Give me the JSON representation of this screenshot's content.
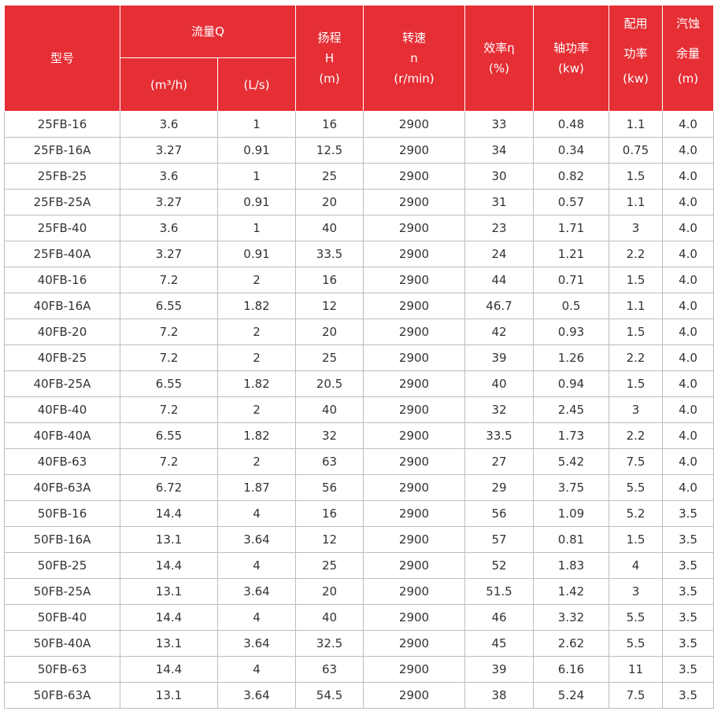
{
  "headers": {
    "model": "型号",
    "flow": "流量Q",
    "flow_m3h": "(m³/h)",
    "flow_ls": "(L/s)",
    "head": [
      "扬程",
      "H",
      "(m)"
    ],
    "speed": [
      "转速",
      "n",
      "(r/min)"
    ],
    "efficiency": [
      "效率η",
      "(%)"
    ],
    "shaft_power": [
      "轴功率",
      "(kw)"
    ],
    "motor_power": [
      "配用",
      "功率",
      "(kw)"
    ],
    "npsh": [
      "汽蚀",
      "余量",
      "(m)"
    ]
  },
  "rows": [
    [
      "25FB-16",
      "3.6",
      "1",
      "16",
      "2900",
      "33",
      "0.48",
      "1.1",
      "4.0"
    ],
    [
      "25FB-16A",
      "3.27",
      "0.91",
      "12.5",
      "2900",
      "34",
      "0.34",
      "0.75",
      "4.0"
    ],
    [
      "25FB-25",
      "3.6",
      "1",
      "25",
      "2900",
      "30",
      "0.82",
      "1.5",
      "4.0"
    ],
    [
      "25FB-25A",
      "3.27",
      "0.91",
      "20",
      "2900",
      "31",
      "0.57",
      "1.1",
      "4.0"
    ],
    [
      "25FB-40",
      "3.6",
      "1",
      "40",
      "2900",
      "23",
      "1.71",
      "3",
      "4.0"
    ],
    [
      "25FB-40A",
      "3.27",
      "0.91",
      "33.5",
      "2900",
      "24",
      "1.21",
      "2.2",
      "4.0"
    ],
    [
      "40FB-16",
      "7.2",
      "2",
      "16",
      "2900",
      "44",
      "0.71",
      "1.5",
      "4.0"
    ],
    [
      "40FB-16A",
      "6.55",
      "1.82",
      "12",
      "2900",
      "46.7",
      "0.5",
      "1.1",
      "4.0"
    ],
    [
      "40FB-20",
      "7.2",
      "2",
      "20",
      "2900",
      "42",
      "0.93",
      "1.5",
      "4.0"
    ],
    [
      "40FB-25",
      "7.2",
      "2",
      "25",
      "2900",
      "39",
      "1.26",
      "2.2",
      "4.0"
    ],
    [
      "40FB-25A",
      "6.55",
      "1.82",
      "20.5",
      "2900",
      "40",
      "0.94",
      "1.5",
      "4.0"
    ],
    [
      "40FB-40",
      "7.2",
      "2",
      "40",
      "2900",
      "32",
      "2.45",
      "3",
      "4.0"
    ],
    [
      "40FB-40A",
      "6.55",
      "1.82",
      "32",
      "2900",
      "33.5",
      "1.73",
      "2.2",
      "4.0"
    ],
    [
      "40FB-63",
      "7.2",
      "2",
      "63",
      "2900",
      "27",
      "5.42",
      "7.5",
      "4.0"
    ],
    [
      "40FB-63A",
      "6.72",
      "1.87",
      "56",
      "2900",
      "29",
      "3.75",
      "5.5",
      "4.0"
    ],
    [
      "50FB-16",
      "14.4",
      "4",
      "16",
      "2900",
      "56",
      "1.09",
      "5.2",
      "3.5"
    ],
    [
      "50FB-16A",
      "13.1",
      "3.64",
      "12",
      "2900",
      "57",
      "0.81",
      "1.5",
      "3.5"
    ],
    [
      "50FB-25",
      "14.4",
      "4",
      "25",
      "2900",
      "52",
      "1.83",
      "4",
      "3.5"
    ],
    [
      "50FB-25A",
      "13.1",
      "3.64",
      "20",
      "2900",
      "51.5",
      "1.42",
      "3",
      "3.5"
    ],
    [
      "50FB-40",
      "14.4",
      "4",
      "40",
      "2900",
      "46",
      "3.32",
      "5.5",
      "3.5"
    ],
    [
      "50FB-40A",
      "13.1",
      "3.64",
      "32.5",
      "2900",
      "45",
      "2.62",
      "5.5",
      "3.5"
    ],
    [
      "50FB-63",
      "14.4",
      "4",
      "63",
      "2900",
      "39",
      "6.16",
      "11",
      "3.5"
    ],
    [
      "50FB-63A",
      "13.1",
      "3.64",
      "54.5",
      "2900",
      "38",
      "5.24",
      "7.5",
      "3.5"
    ]
  ]
}
